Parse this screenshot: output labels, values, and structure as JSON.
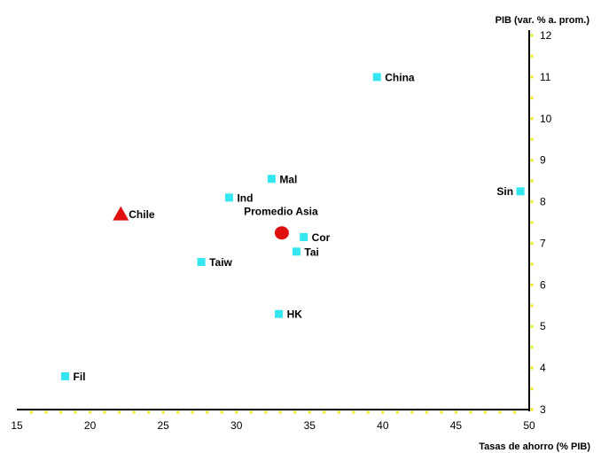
{
  "chart_data": {
    "type": "scatter",
    "title": "",
    "xlabel": "Tasas de ahorro (% PIB)",
    "ylabel": "PIB (var. % a. prom.)",
    "xlim": [
      15,
      50
    ],
    "ylim": [
      3,
      12
    ],
    "xticks": [
      15,
      20,
      25,
      30,
      35,
      40,
      45,
      50
    ],
    "yticks": [
      3,
      4,
      5,
      6,
      7,
      8,
      9,
      10,
      11,
      12
    ],
    "grid": false,
    "legend": "none",
    "colors": {
      "economy_marker": "#33e6ef",
      "chile_marker": "#e01010",
      "average_marker": "#e01010",
      "axis": "#000000",
      "tick_dot": "#eeee33"
    },
    "points": [
      {
        "label": "China",
        "x": 39.6,
        "y": 11.0,
        "marker": "square",
        "label_side": "right"
      },
      {
        "label": "Sin",
        "x": 49.4,
        "y": 8.25,
        "marker": "square",
        "label_side": "left"
      },
      {
        "label": "Mal",
        "x": 32.4,
        "y": 8.55,
        "marker": "square",
        "label_side": "right"
      },
      {
        "label": "Ind",
        "x": 29.5,
        "y": 8.1,
        "marker": "square",
        "label_side": "right"
      },
      {
        "label": "Chile",
        "x": 22.1,
        "y": 7.7,
        "marker": "triangle",
        "label_side": "right"
      },
      {
        "label": "Promedio Asia",
        "x": 33.1,
        "y": 7.25,
        "marker": "circle",
        "label_side": "above"
      },
      {
        "label": "Cor",
        "x": 34.6,
        "y": 7.15,
        "marker": "square",
        "label_side": "right"
      },
      {
        "label": "Tai",
        "x": 34.1,
        "y": 6.8,
        "marker": "square",
        "label_side": "right"
      },
      {
        "label": "Taiw",
        "x": 27.6,
        "y": 6.55,
        "marker": "square",
        "label_side": "right"
      },
      {
        "label": "HK",
        "x": 32.9,
        "y": 5.3,
        "marker": "square",
        "label_side": "right"
      },
      {
        "label": "Fil",
        "x": 18.3,
        "y": 3.8,
        "marker": "square",
        "label_side": "right"
      }
    ]
  }
}
